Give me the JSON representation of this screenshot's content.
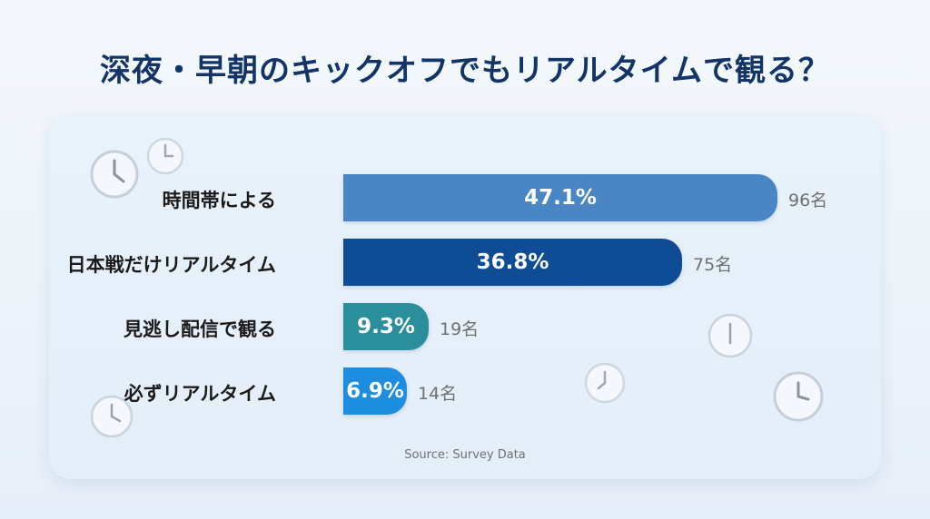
{
  "title": "深夜・早朝のキックオフでもリアルタイムで観る？",
  "source": "Source: Survey Data",
  "chart_data": {
    "type": "bar",
    "orientation": "horizontal",
    "title": "深夜・早朝のキックオフでもリアルタイムで観る？",
    "categories": [
      "時間帯による",
      "日本戦だけリアルタイム",
      "見逃し配信で観る",
      "必ずリアルタイム"
    ],
    "values": [
      47.1,
      36.8,
      9.3,
      6.9
    ],
    "value_labels": [
      "47.1%",
      "36.8%",
      "9.3%",
      "6.9%"
    ],
    "counts": [
      "96名",
      "75名",
      "19名",
      "14名"
    ],
    "colors": [
      "#4a86c5",
      "#0e4c95",
      "#2a8f9b",
      "#1d8de0"
    ],
    "xlim": [
      0,
      47.1
    ],
    "grid": false,
    "legend": "none"
  }
}
